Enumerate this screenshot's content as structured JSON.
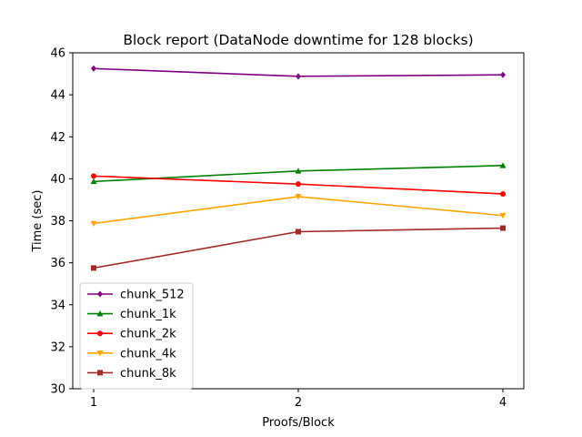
{
  "chart_data": {
    "type": "line",
    "title": "Block report (DataNode downtime for 128 blocks)",
    "xlabel": "Proofs/Block",
    "ylabel": "Time (sec)",
    "categories": [
      "1",
      "2",
      "4"
    ],
    "ylim": [
      30,
      46
    ],
    "yticks": [
      30,
      32,
      34,
      36,
      38,
      40,
      42,
      44,
      46
    ],
    "grid": false,
    "legend_position": "lower-left",
    "series": [
      {
        "name": "chunk_512",
        "color": "#800080",
        "marker": "diamond",
        "values": [
          45.25,
          44.88,
          44.95
        ]
      },
      {
        "name": "chunk_1k",
        "color": "#008000",
        "marker": "triangle-up",
        "values": [
          39.87,
          40.37,
          40.63
        ]
      },
      {
        "name": "chunk_2k",
        "color": "#ff0000",
        "marker": "circle",
        "values": [
          40.13,
          39.75,
          39.28
        ]
      },
      {
        "name": "chunk_4k",
        "color": "#ffa500",
        "marker": "triangle-down",
        "values": [
          37.87,
          39.15,
          38.25
        ]
      },
      {
        "name": "chunk_8k",
        "color": "#a52a2a",
        "marker": "square",
        "values": [
          35.75,
          37.48,
          37.65
        ]
      }
    ]
  }
}
